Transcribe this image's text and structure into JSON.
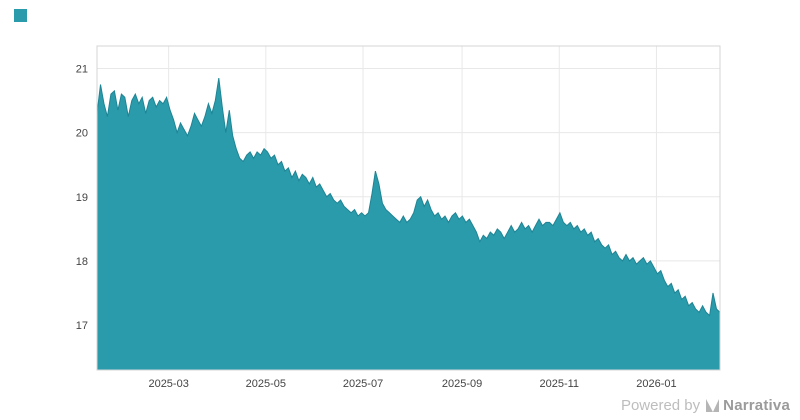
{
  "page": {
    "background": "#ffffff"
  },
  "footer": {
    "powered_by": "Powered by",
    "brand": "Narrativa"
  },
  "chart_data": {
    "type": "area",
    "title": "",
    "xlabel": "",
    "ylabel": "",
    "grid": true,
    "legend_position": "none",
    "ylim": [
      16.3,
      21.35
    ],
    "y_ticks": [
      17,
      18,
      19,
      20,
      21
    ],
    "x_ticks": [
      {
        "label": "2025-03",
        "pos": 0.115
      },
      {
        "label": "2025-05",
        "pos": 0.271
      },
      {
        "label": "2025-07",
        "pos": 0.427
      },
      {
        "label": "2025-09",
        "pos": 0.586
      },
      {
        "label": "2025-11",
        "pos": 0.742
      },
      {
        "label": "2026-01",
        "pos": 0.898
      }
    ],
    "series": [
      {
        "name": "value",
        "color": "#2a9bab",
        "line_color": "#1f8494",
        "values": [
          20.3,
          20.75,
          20.45,
          20.25,
          20.6,
          20.65,
          20.35,
          20.6,
          20.55,
          20.25,
          20.5,
          20.6,
          20.45,
          20.55,
          20.3,
          20.5,
          20.55,
          20.4,
          20.5,
          20.45,
          20.55,
          20.35,
          20.2,
          20.0,
          20.15,
          20.05,
          19.95,
          20.1,
          20.3,
          20.2,
          20.1,
          20.25,
          20.45,
          20.3,
          20.5,
          20.85,
          20.4,
          20.0,
          20.35,
          19.95,
          19.75,
          19.6,
          19.55,
          19.65,
          19.7,
          19.6,
          19.7,
          19.65,
          19.75,
          19.7,
          19.6,
          19.65,
          19.5,
          19.55,
          19.4,
          19.45,
          19.3,
          19.4,
          19.25,
          19.35,
          19.3,
          19.2,
          19.3,
          19.15,
          19.2,
          19.1,
          19.0,
          19.05,
          18.95,
          18.9,
          18.95,
          18.85,
          18.8,
          18.75,
          18.8,
          18.7,
          18.75,
          18.7,
          18.75,
          19.05,
          19.4,
          19.2,
          18.9,
          18.8,
          18.75,
          18.7,
          18.65,
          18.6,
          18.7,
          18.6,
          18.65,
          18.75,
          18.95,
          19.0,
          18.85,
          18.95,
          18.8,
          18.7,
          18.75,
          18.65,
          18.7,
          18.6,
          18.7,
          18.75,
          18.65,
          18.7,
          18.6,
          18.65,
          18.55,
          18.45,
          18.3,
          18.4,
          18.35,
          18.45,
          18.4,
          18.5,
          18.45,
          18.35,
          18.45,
          18.55,
          18.45,
          18.5,
          18.6,
          18.5,
          18.55,
          18.45,
          18.55,
          18.65,
          18.55,
          18.6,
          18.6,
          18.55,
          18.65,
          18.75,
          18.6,
          18.55,
          18.6,
          18.5,
          18.55,
          18.45,
          18.5,
          18.4,
          18.45,
          18.3,
          18.35,
          18.25,
          18.2,
          18.25,
          18.1,
          18.15,
          18.05,
          18.0,
          18.1,
          18.0,
          18.05,
          17.95,
          18.0,
          18.05,
          17.95,
          18.0,
          17.9,
          17.8,
          17.85,
          17.7,
          17.6,
          17.65,
          17.5,
          17.55,
          17.4,
          17.45,
          17.3,
          17.35,
          17.25,
          17.2,
          17.3,
          17.2,
          17.15,
          17.5,
          17.25,
          17.2
        ]
      }
    ]
  }
}
